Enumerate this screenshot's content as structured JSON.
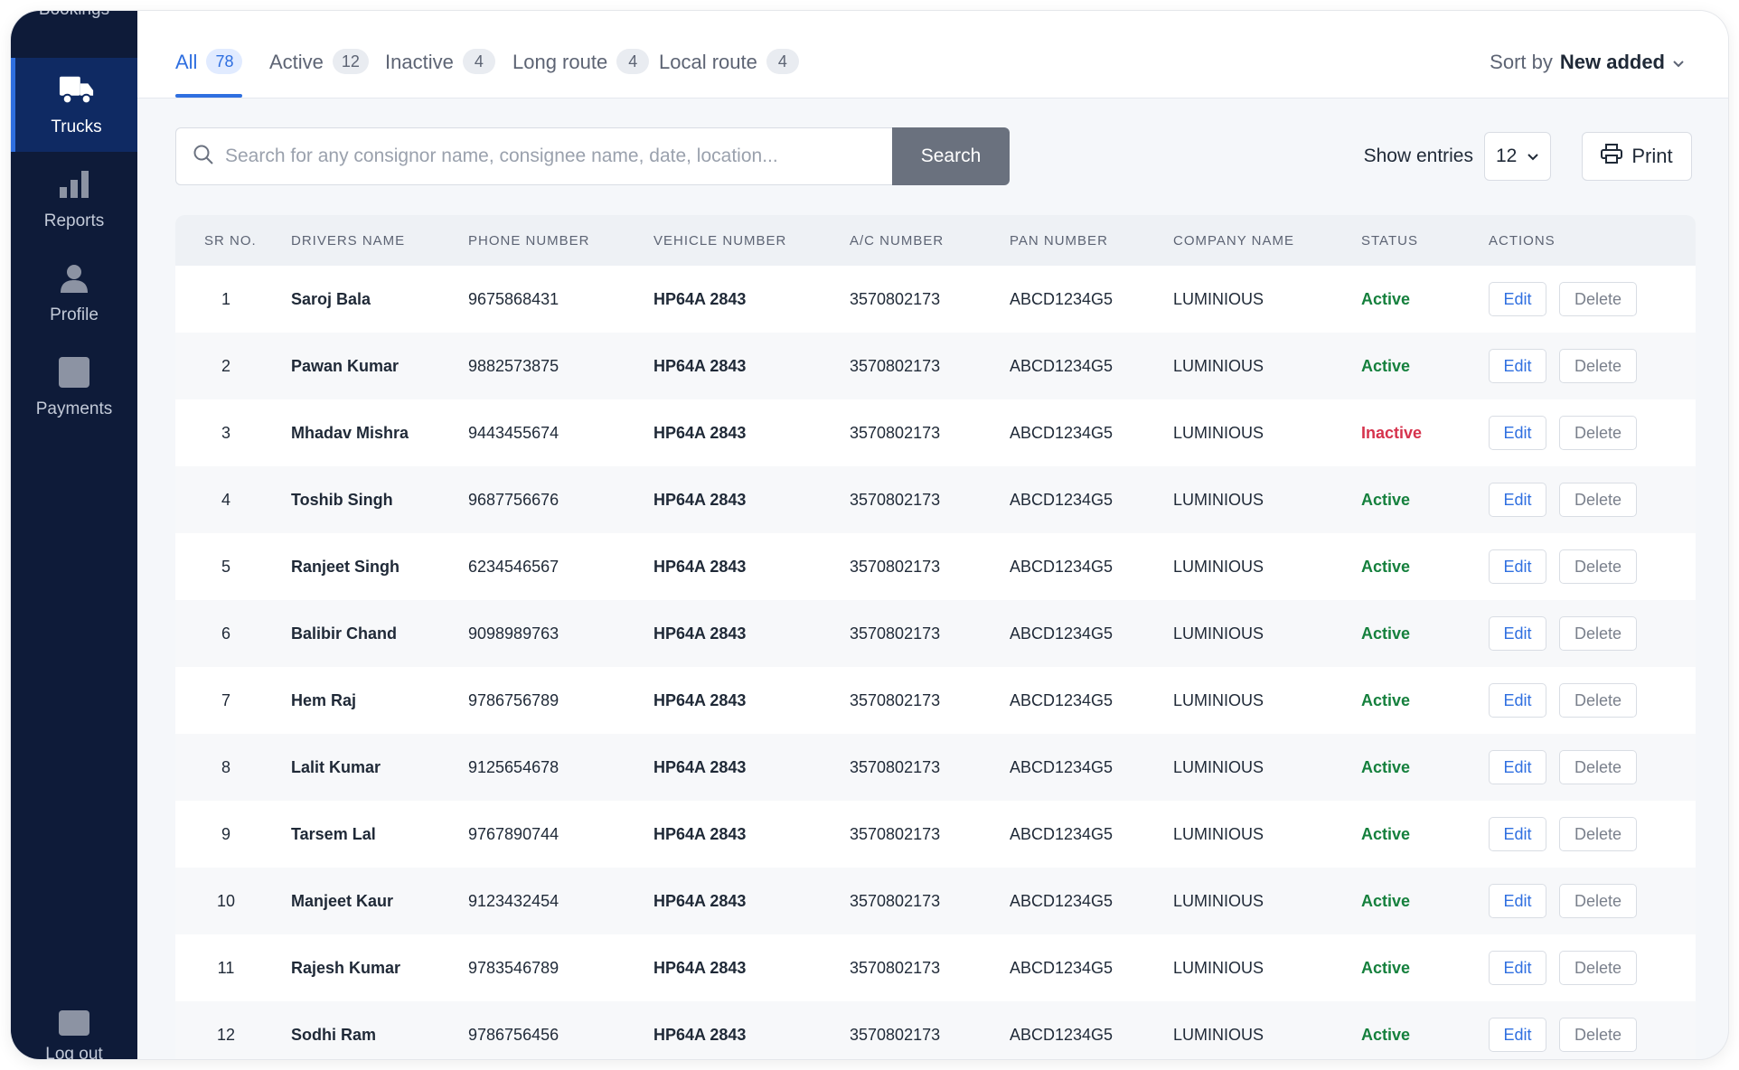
{
  "sidebar": {
    "top_cut_label": "Bookings",
    "items": [
      {
        "label": "Trucks",
        "icon": "truck-icon",
        "active": true
      },
      {
        "label": "Reports",
        "icon": "bar-chart-icon",
        "active": false
      },
      {
        "label": "Profile",
        "icon": "user-icon",
        "active": false
      },
      {
        "label": "Payments",
        "icon": "payments-icon",
        "active": false
      }
    ],
    "bottom_label": "Log out"
  },
  "tabs": [
    {
      "label": "All",
      "count": "78",
      "active": true
    },
    {
      "label": "Active",
      "count": "12"
    },
    {
      "label": "Inactive",
      "count": "4"
    },
    {
      "label": "Long route",
      "count": "4"
    },
    {
      "label": "Local route",
      "count": "4"
    }
  ],
  "sort": {
    "prefix": "Sort by",
    "value": "New added"
  },
  "search": {
    "placeholder": "Search for any consignor name, consignee name, date, location...",
    "value": "",
    "button": "Search"
  },
  "entries": {
    "label": "Show entries",
    "value": "12"
  },
  "print_label": "Print",
  "table": {
    "columns": [
      "SR NO.",
      "DRIVERS NAME",
      "PHONE NUMBER",
      "VEHICLE NUMBER",
      "A/C NUMBER",
      "PAN NUMBER",
      "COMPANY NAME",
      "STATUS",
      "ACTIONS"
    ],
    "edit_label": "Edit",
    "delete_label": "Delete",
    "rows": [
      {
        "sr": "1",
        "name": "Saroj Bala",
        "phone": "9675868431",
        "vehicle": "HP64A 2843",
        "ac": "3570802173",
        "pan": "ABCD1234G5",
        "company": "LUMINIOUS",
        "status": "Active"
      },
      {
        "sr": "2",
        "name": "Pawan Kumar",
        "phone": "9882573875",
        "vehicle": "HP64A 2843",
        "ac": "3570802173",
        "pan": "ABCD1234G5",
        "company": "LUMINIOUS",
        "status": "Active"
      },
      {
        "sr": "3",
        "name": "Mhadav Mishra",
        "phone": "9443455674",
        "vehicle": "HP64A 2843",
        "ac": "3570802173",
        "pan": "ABCD1234G5",
        "company": "LUMINIOUS",
        "status": "Inactive"
      },
      {
        "sr": "4",
        "name": "Toshib Singh",
        "phone": "9687756676",
        "vehicle": "HP64A 2843",
        "ac": "3570802173",
        "pan": "ABCD1234G5",
        "company": "LUMINIOUS",
        "status": "Active"
      },
      {
        "sr": "5",
        "name": "Ranjeet Singh",
        "phone": "6234546567",
        "vehicle": "HP64A 2843",
        "ac": "3570802173",
        "pan": "ABCD1234G5",
        "company": "LUMINIOUS",
        "status": "Active"
      },
      {
        "sr": "6",
        "name": "Balibir Chand",
        "phone": "9098989763",
        "vehicle": "HP64A 2843",
        "ac": "3570802173",
        "pan": "ABCD1234G5",
        "company": "LUMINIOUS",
        "status": "Active"
      },
      {
        "sr": "7",
        "name": "Hem Raj",
        "phone": "9786756789",
        "vehicle": "HP64A 2843",
        "ac": "3570802173",
        "pan": "ABCD1234G5",
        "company": "LUMINIOUS",
        "status": "Active"
      },
      {
        "sr": "8",
        "name": "Lalit Kumar",
        "phone": "9125654678",
        "vehicle": "HP64A 2843",
        "ac": "3570802173",
        "pan": "ABCD1234G5",
        "company": "LUMINIOUS",
        "status": "Active"
      },
      {
        "sr": "9",
        "name": "Tarsem Lal",
        "phone": "9767890744",
        "vehicle": "HP64A 2843",
        "ac": "3570802173",
        "pan": "ABCD1234G5",
        "company": "LUMINIOUS",
        "status": "Active"
      },
      {
        "sr": "10",
        "name": "Manjeet Kaur",
        "phone": "9123432454",
        "vehicle": "HP64A 2843",
        "ac": "3570802173",
        "pan": "ABCD1234G5",
        "company": "LUMINIOUS",
        "status": "Active"
      },
      {
        "sr": "11",
        "name": "Rajesh Kumar",
        "phone": "9783546789",
        "vehicle": "HP64A 2843",
        "ac": "3570802173",
        "pan": "ABCD1234G5",
        "company": "LUMINIOUS",
        "status": "Active"
      },
      {
        "sr": "12",
        "name": "Sodhi Ram",
        "phone": "9786756456",
        "vehicle": "HP64A 2843",
        "ac": "3570802173",
        "pan": "ABCD1234G5",
        "company": "LUMINIOUS",
        "status": "Active"
      }
    ]
  },
  "colors": {
    "sidebar": "#0e1b39",
    "accent": "#2f6fe0",
    "active_status": "#15803d",
    "inactive_status": "#d6334d"
  }
}
